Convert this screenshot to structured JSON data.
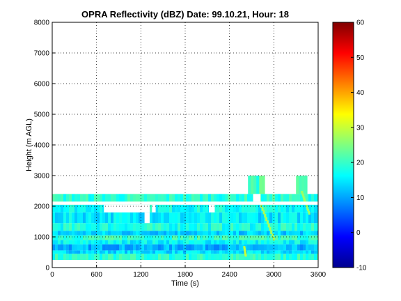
{
  "chart_data": {
    "type": "heatmap",
    "title": "OPRA Reflectivity (dBZ)  Date: 99.10.21, Hour: 18",
    "xlabel": "Time (s)",
    "ylabel": "Height (m AGL)",
    "xlim": [
      0,
      3600
    ],
    "ylim": [
      0,
      8000
    ],
    "xticks": [
      0,
      600,
      1200,
      1800,
      2400,
      3000,
      3600
    ],
    "yticks": [
      0,
      1000,
      2000,
      3000,
      4000,
      5000,
      6000,
      7000,
      8000
    ],
    "xtick_labels": [
      "0",
      "600",
      "1200",
      "1800",
      "2400",
      "3000",
      "3600"
    ],
    "ytick_labels": [
      "0",
      "1000",
      "2000",
      "3000",
      "4000",
      "5000",
      "6000",
      "7000",
      "8000"
    ],
    "grid": true,
    "colorbar": {
      "colormap": "jet",
      "clim": [
        -10,
        60
      ],
      "ticks": [
        -10,
        0,
        10,
        20,
        30,
        40,
        50,
        60
      ],
      "tick_labels": [
        "-10",
        "0",
        "10",
        "20",
        "30",
        "40",
        "50",
        "60"
      ]
    },
    "layers": [
      {
        "height_range": [
          250,
          450
        ],
        "time_range": [
          0,
          3600
        ],
        "dbz": 19
      },
      {
        "height_range": [
          450,
          560
        ],
        "time_range": [
          0,
          3600
        ],
        "dbz": 14
      },
      {
        "height_range": [
          560,
          760
        ],
        "time_range": [
          0,
          3600
        ],
        "dbz": 11
      },
      {
        "height_range": [
          760,
          900
        ],
        "time_range": [
          0,
          3600
        ],
        "dbz": 16
      },
      {
        "height_range": [
          900,
          1050
        ],
        "time_range": [
          0,
          3600
        ],
        "dbz": 20
      },
      {
        "height_range": [
          1050,
          1200
        ],
        "time_range": [
          0,
          3600
        ],
        "dbz": 13
      },
      {
        "height_range": [
          1200,
          1450
        ],
        "time_range": [
          0,
          3600
        ],
        "dbz": 18
      },
      {
        "height_range": [
          1450,
          1800
        ],
        "time_range": [
          0,
          3600
        ],
        "dbz": 15
      },
      {
        "height_range": [
          1800,
          2050
        ],
        "time_range": [
          0,
          3600
        ],
        "dbz": 17
      },
      {
        "height_range": [
          2050,
          2150
        ],
        "time_range": [
          0,
          3600
        ],
        "dbz": 20
      },
      {
        "height_range": [
          2150,
          2400
        ],
        "time_range": [
          0,
          3600
        ],
        "dbz": 19
      },
      {
        "height_range": [
          2400,
          3000
        ],
        "time_range": [
          2650,
          2850
        ],
        "dbz": 21
      },
      {
        "height_range": [
          2400,
          3000
        ],
        "time_range": [
          3300,
          3450
        ],
        "dbz": 21
      }
    ],
    "gaps": [
      {
        "height_range": [
          2050,
          2150
        ],
        "time_range": [
          0,
          3600
        ]
      },
      {
        "height_range": [
          1800,
          2050
        ],
        "time_range": [
          700,
          1320
        ]
      },
      {
        "height_range": [
          1450,
          1800
        ],
        "time_range": [
          1250,
          1320
        ]
      },
      {
        "height_range": [
          1800,
          2050
        ],
        "time_range": [
          1350,
          1400
        ]
      },
      {
        "height_range": [
          1800,
          2050
        ],
        "time_range": [
          2120,
          2200
        ]
      },
      {
        "height_range": [
          2150,
          2400
        ],
        "time_range": [
          2720,
          2820
        ]
      }
    ],
    "bright_streaks": [
      {
        "height_range": [
          1000,
          2400
        ],
        "time_range": [
          2780,
          3000
        ],
        "dbz": 28
      },
      {
        "height_range": [
          1800,
          2500
        ],
        "time_range": [
          3380,
          3480
        ],
        "dbz": 27
      },
      {
        "height_range": [
          400,
          700
        ],
        "time_range": [
          2600,
          2620
        ],
        "dbz": 30
      }
    ]
  }
}
